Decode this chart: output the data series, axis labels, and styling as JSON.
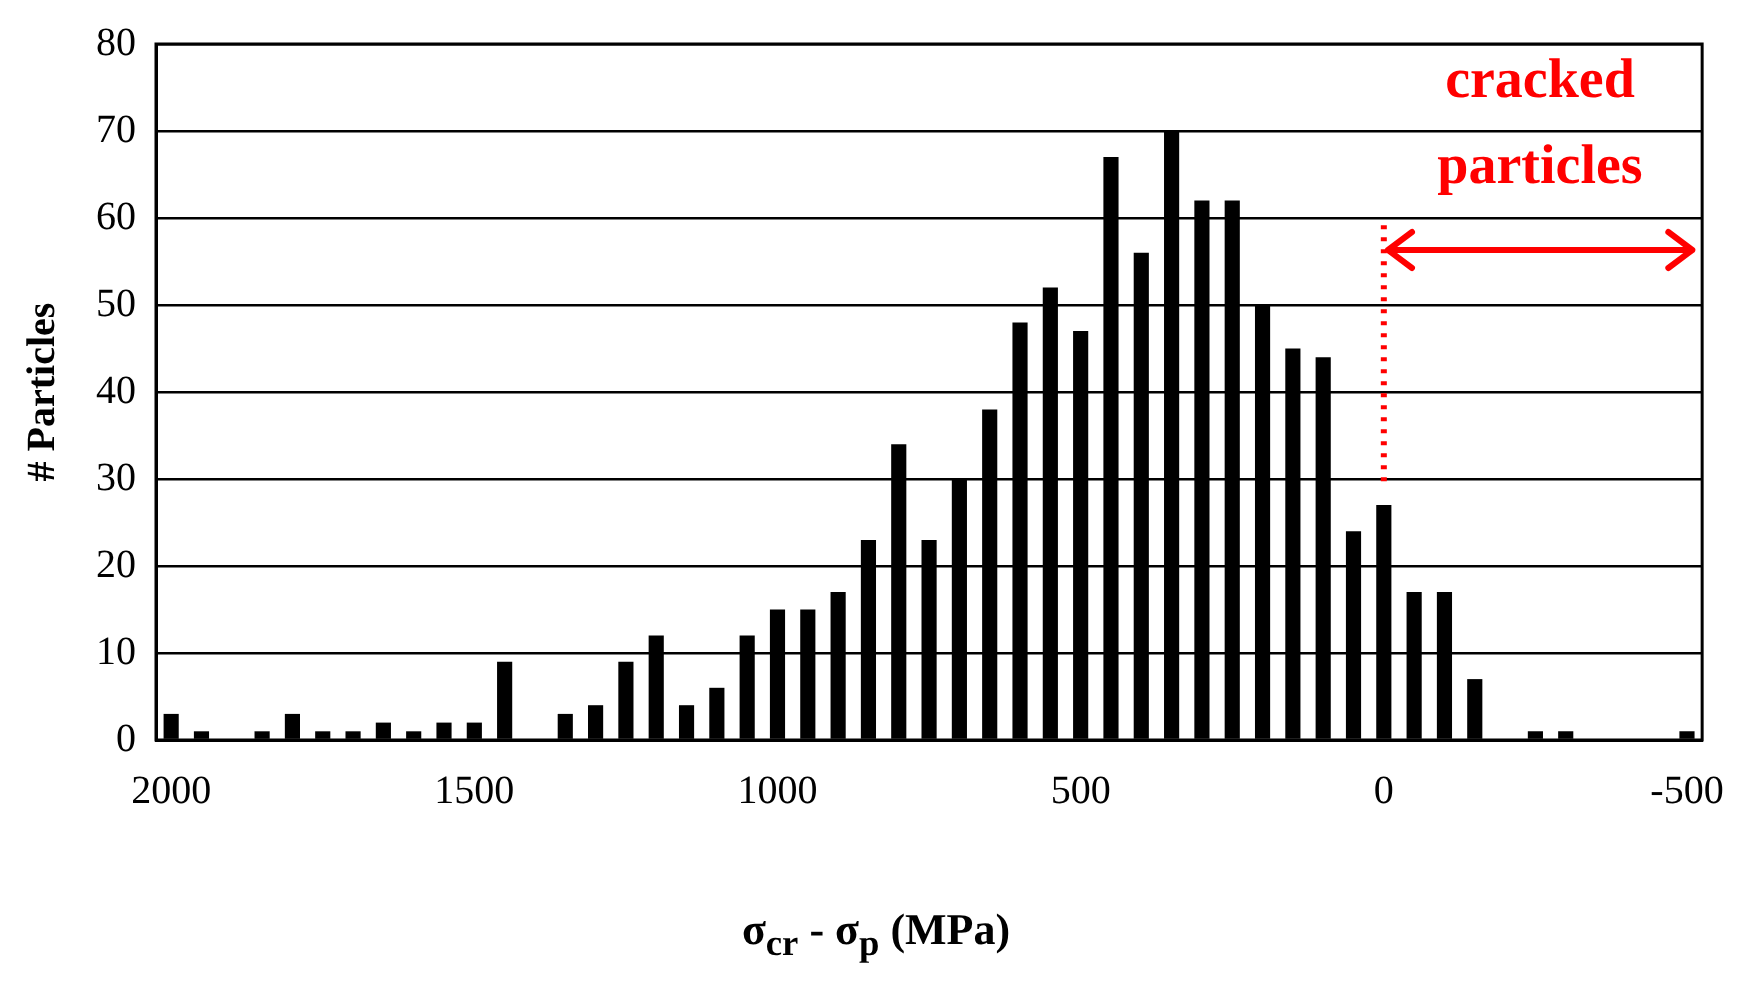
{
  "chart_data": {
    "type": "bar",
    "xlabel": "σ$_{cr}$ - σ$_{p}$ (MPa)",
    "ylabel": "# Particles",
    "categories": [
      "2000",
      null,
      null,
      null,
      null,
      null,
      null,
      null,
      null,
      null,
      "1500",
      null,
      null,
      null,
      null,
      null,
      null,
      null,
      null,
      null,
      "1000",
      null,
      null,
      null,
      null,
      null,
      null,
      null,
      null,
      null,
      "500",
      null,
      null,
      null,
      null,
      null,
      null,
      null,
      null,
      null,
      "0",
      null,
      null,
      null,
      null,
      null,
      null,
      null,
      null,
      null,
      "-500"
    ],
    "values": [
      3,
      1,
      0,
      1,
      3,
      1,
      1,
      2,
      1,
      2,
      2,
      9,
      0,
      3,
      4,
      9,
      12,
      4,
      6,
      12,
      15,
      15,
      17,
      23,
      34,
      23,
      30,
      38,
      48,
      52,
      47,
      67,
      56,
      70,
      62,
      62,
      50,
      45,
      44,
      24,
      27,
      17,
      17,
      7,
      0,
      1,
      1,
      0,
      0,
      0,
      1
    ],
    "color": "#000000",
    "ylim": [
      0,
      80
    ],
    "yticks": [
      0,
      10,
      20,
      30,
      40,
      50,
      60,
      70,
      80
    ],
    "grid": "y",
    "legend": false,
    "ref_lines": [
      {
        "axis": "x",
        "value": "0",
        "color": "#ff0000",
        "line_style": "dotted"
      }
    ],
    "annotations": [
      "cracked particles"
    ]
  }
}
